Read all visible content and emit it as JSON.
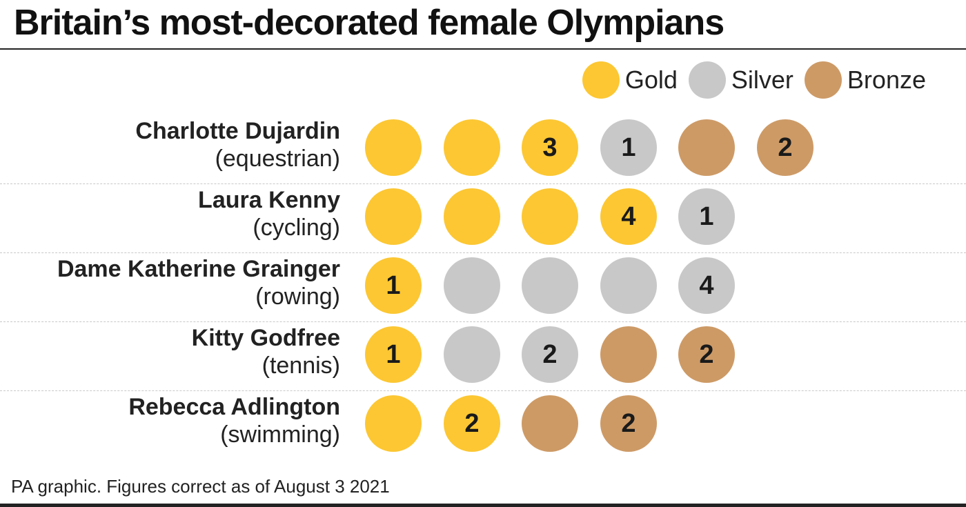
{
  "title": "Britain’s most-decorated female Olympians",
  "footer": "PA graphic. Figures correct as of August 3 2021",
  "colors": {
    "gold": "#fcc733",
    "silver": "#c8c8c8",
    "bronze": "#cd9a66"
  },
  "legend": [
    {
      "label": "Gold",
      "key": "gold"
    },
    {
      "label": "Silver",
      "key": "silver"
    },
    {
      "label": "Bronze",
      "key": "bronze"
    }
  ],
  "chart_data": {
    "type": "table",
    "title": "Britain’s most-decorated female Olympians",
    "columns": [
      "Gold",
      "Silver",
      "Bronze"
    ],
    "rows": [
      {
        "name": "Charlotte Dujardin",
        "sport": "(equestrian)",
        "gold": 3,
        "silver": 1,
        "bronze": 2
      },
      {
        "name": "Laura Kenny",
        "sport": "(cycling)",
        "gold": 4,
        "silver": 1,
        "bronze": 0
      },
      {
        "name": "Dame Katherine Grainger",
        "sport": "(rowing)",
        "gold": 1,
        "silver": 4,
        "bronze": 0
      },
      {
        "name": "Kitty Godfree",
        "sport": "(tennis)",
        "gold": 1,
        "silver": 2,
        "bronze": 2
      },
      {
        "name": "Rebecca Adlington",
        "sport": "(swimming)",
        "gold": 2,
        "silver": 0,
        "bronze": 2
      }
    ]
  }
}
